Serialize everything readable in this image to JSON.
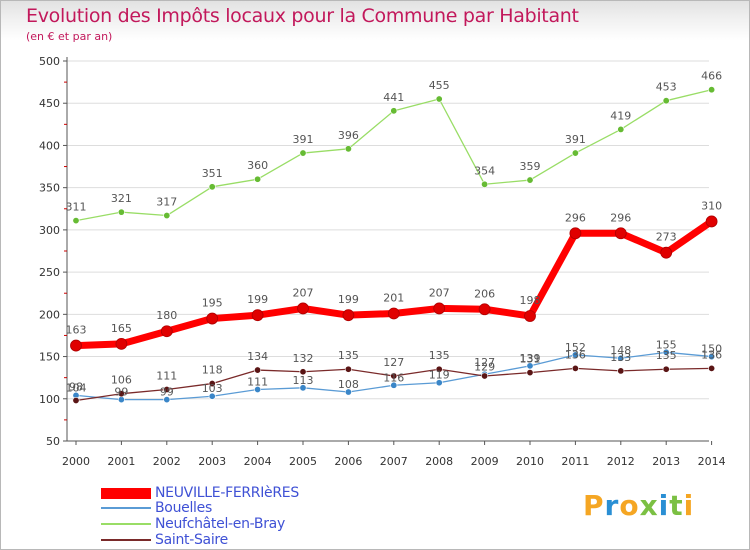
{
  "header": {
    "title": "Evolution des Impôts locaux pour la Commune par Habitant",
    "subtitle": "(en € et par an)"
  },
  "brand": {
    "logo_text": "Proxiti",
    "colors": [
      "#f5a623",
      "#2a8fd4",
      "#f5a623",
      "#7bc043",
      "#2a8fd4",
      "#7bc043",
      "#f5a623"
    ]
  },
  "colors": {
    "title": "#c2185b",
    "legend_text": "#3f51d5",
    "axis": "#555555",
    "tick_mark": "#cc0000",
    "grid": "#dddddd"
  },
  "legend": {
    "position": "bottom-left",
    "items": [
      {
        "label": "NEUVILLE-FERRIèRES",
        "color": "#ff0000",
        "weight": "thick"
      },
      {
        "label": "Bouelles",
        "color": "#5a9bd5",
        "weight": "thin"
      },
      {
        "label": "Neufchâtel-en-Bray",
        "color": "#99dd66",
        "weight": "thin"
      },
      {
        "label": "Saint-Saire",
        "color": "#7a2a2a",
        "weight": "thin"
      }
    ]
  },
  "chart_data": {
    "type": "line",
    "title": "Evolution des Impôts locaux pour la Commune par Habitant",
    "subtitle": "(en € et par an)",
    "xlabel": "",
    "ylabel": "",
    "ylim": [
      50,
      500
    ],
    "yticks": [
      50,
      100,
      150,
      200,
      250,
      300,
      350,
      400,
      450,
      500
    ],
    "grid": true,
    "x": [
      "2000",
      "2001",
      "2002",
      "2003",
      "2004",
      "2005",
      "2006",
      "2007",
      "2008",
      "2009",
      "2010",
      "2011",
      "2012",
      "2013",
      "2014"
    ],
    "series": [
      {
        "name": "NEUVILLE-FERRIèRES",
        "color": "#ff0000",
        "marker": "#e00000",
        "values": [
          163,
          165,
          180,
          195,
          199,
          207,
          199,
          201,
          207,
          206,
          198,
          296,
          296,
          273,
          310
        ],
        "labels": [
          "163",
          "165",
          "180",
          "195",
          "199",
          "207",
          "199",
          "201",
          "207",
          "206",
          "198",
          "296",
          "296",
          "273",
          "310"
        ]
      },
      {
        "name": "Bouelles",
        "color": "#5a9bd5",
        "marker": "#3a86c8",
        "values": [
          104,
          99,
          99,
          103,
          111,
          113,
          108,
          116,
          119,
          129,
          139,
          152,
          148,
          155,
          150
        ],
        "labels": [
          "104",
          "99",
          "99",
          "103",
          "111",
          "113",
          "108",
          "116",
          "119",
          "129",
          "139",
          "152",
          "148",
          "155",
          "150"
        ]
      },
      {
        "name": "Neufchâtel-en-Bray",
        "color": "#99dd66",
        "marker": "#66bb33",
        "values": [
          311,
          321,
          317,
          351,
          360,
          391,
          396,
          441,
          455,
          354,
          359,
          391,
          419,
          453,
          466
        ],
        "labels": [
          "311",
          "321",
          "317",
          "351",
          "360",
          "391",
          "396",
          "441",
          "455",
          "354",
          "359",
          "391",
          "419",
          "453",
          "466"
        ]
      },
      {
        "name": "Saint-Saire",
        "color": "#7a2a2a",
        "marker": "#5a1515",
        "values": [
          98,
          106,
          111,
          118,
          134,
          132,
          135,
          127,
          135,
          127,
          131,
          136,
          133,
          135,
          136
        ],
        "labels": [
          "98",
          "106",
          "111",
          "118",
          "134",
          "132",
          "135",
          "127",
          "135",
          "127",
          "131",
          "136",
          "133",
          "135",
          "136"
        ]
      }
    ]
  }
}
